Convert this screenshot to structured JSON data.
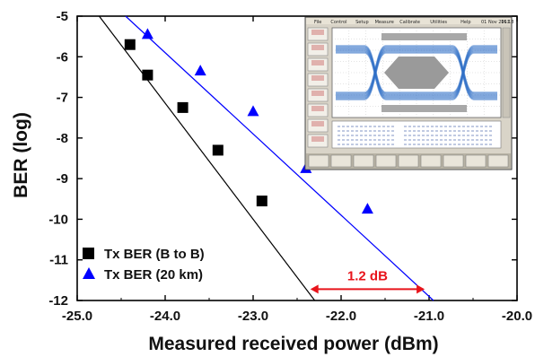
{
  "chart_data": {
    "type": "scatter",
    "xlabel": "Measured received power (dBm)",
    "ylabel": "BER (log)",
    "xlim": [
      -25.0,
      -20.0
    ],
    "ylim": [
      -12,
      -5
    ],
    "xticks": [
      "-25.0",
      "-24.0",
      "-23.0",
      "-22.0",
      "-21.0",
      "-20.0"
    ],
    "yticks": [
      "-5",
      "-6",
      "-7",
      "-8",
      "-9",
      "-10",
      "-11",
      "-12"
    ],
    "grid": false,
    "legend_position": "bottom-left",
    "series": [
      {
        "name": "Tx BER (B to B)",
        "marker": "square",
        "color": "#000000",
        "x": [
          -24.4,
          -24.2,
          -23.8,
          -23.4,
          -22.9
        ],
        "y": [
          -5.7,
          -6.45,
          -7.25,
          -8.3,
          -9.55
        ],
        "fit_line": {
          "x": [
            -24.75,
            -22.3
          ],
          "y": [
            -5.0,
            -12.0
          ]
        }
      },
      {
        "name": "Tx BER (20 km)",
        "marker": "triangle",
        "color": "#0000ff",
        "x": [
          -24.2,
          -23.6,
          -23.0,
          -22.4,
          -21.7
        ],
        "y": [
          -5.45,
          -6.35,
          -7.35,
          -8.75,
          -9.75
        ],
        "fit_line": {
          "x": [
            -24.45,
            -20.95
          ],
          "y": [
            -5.0,
            -12.0
          ]
        }
      }
    ],
    "annotations": [
      {
        "text": "1.2 dB",
        "color": "#e8141b",
        "x_from": -22.35,
        "x_to": -21.05,
        "y": -11.72
      }
    ],
    "inset": {
      "description_visible_text": {
        "menu": [
          "File",
          "Control",
          "Setup",
          "Measure",
          "Calibrate",
          "Utilities",
          "Help"
        ],
        "date": "01 Nov 2011",
        "time": "16:18"
      }
    }
  }
}
